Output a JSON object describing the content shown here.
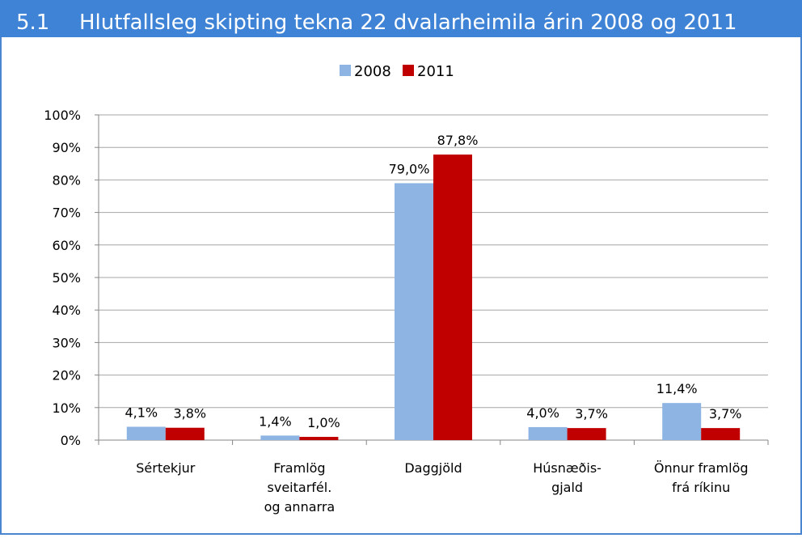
{
  "header": {
    "number": "5.1",
    "title": "Hlutfallsleg skipting tekna 22 dvalarheimila árin 2008 og 2011"
  },
  "chart_data": {
    "type": "bar",
    "categories": [
      [
        "Sértekjur"
      ],
      [
        "Framlög",
        "sveitarfél.",
        "og annarra"
      ],
      [
        "Daggjöld"
      ],
      [
        "Húsnæðis-",
        "gjald"
      ],
      [
        "Önnur framlög",
        "frá ríkinu"
      ]
    ],
    "series": [
      {
        "name": "2008",
        "color": "#8eb4e3",
        "values": [
          4.1,
          1.4,
          79.0,
          4.0,
          11.4
        ],
        "value_labels": [
          "4,1%",
          "1,4%",
          "79,0%",
          "4,0%",
          "11,4%"
        ]
      },
      {
        "name": "2011",
        "color": "#c00000",
        "values": [
          3.8,
          1.0,
          87.8,
          3.7,
          3.7
        ],
        "value_labels": [
          "3,8%",
          "1,0%",
          "87,8%",
          "3,7%",
          "3,7%"
        ]
      }
    ],
    "ylim": [
      0,
      100
    ],
    "yticks": [
      {
        "value": 0,
        "label": "0%"
      },
      {
        "value": 10,
        "label": "10%"
      },
      {
        "value": 20,
        "label": "20%"
      },
      {
        "value": 30,
        "label": "30%"
      },
      {
        "value": 40,
        "label": "40%"
      },
      {
        "value": 50,
        "label": "50%"
      },
      {
        "value": 60,
        "label": "60%"
      },
      {
        "value": 70,
        "label": "70%"
      },
      {
        "value": 80,
        "label": "80%"
      },
      {
        "value": 90,
        "label": "90%"
      },
      {
        "value": 100,
        "label": "100%"
      }
    ],
    "grid": true,
    "legend": "top"
  }
}
